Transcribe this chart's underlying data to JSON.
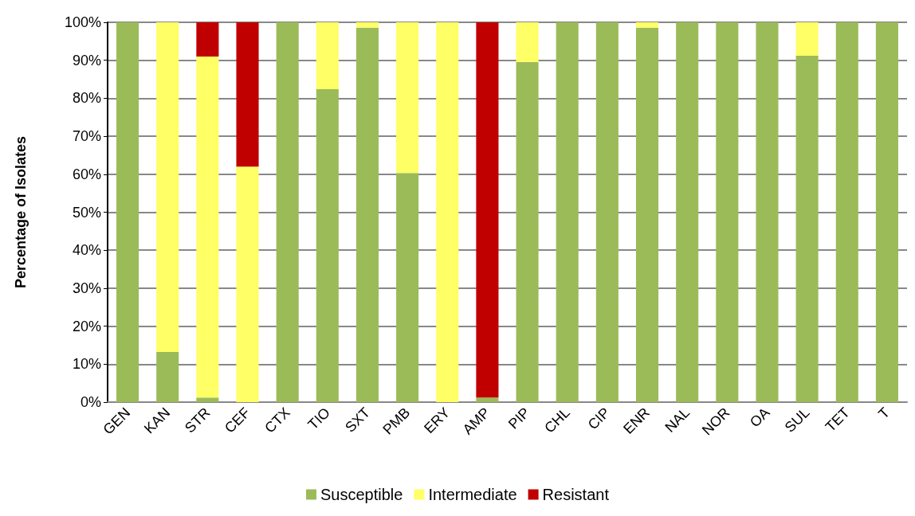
{
  "chart_data": {
    "type": "bar",
    "stacked": true,
    "ylabel": "Percentage of Isolates",
    "categories": [
      "GEN",
      "KAN",
      "STR",
      "CEF",
      "CTX",
      "TIO",
      "SXT",
      "PMB",
      "ERY",
      "AMP",
      "PIP",
      "CHL",
      "CIP",
      "ENR",
      "NAL",
      "NOR",
      "OA",
      "SUL",
      "TET",
      "T"
    ],
    "series": [
      {
        "name": "Susceptible",
        "color": "#9bbb59",
        "values": [
          100,
          13.2,
          1.2,
          0,
          100,
          82.4,
          98.6,
          60.3,
          0,
          1.2,
          89.5,
          100,
          100,
          98.6,
          100,
          100,
          100,
          91.2,
          100,
          100
        ]
      },
      {
        "name": "Intermediate",
        "color": "#ffff66",
        "values": [
          0,
          86.8,
          89.8,
          62,
          0,
          17.6,
          1.4,
          39.7,
          100,
          0,
          10.5,
          0,
          0,
          1.4,
          0,
          0,
          0,
          8.8,
          0,
          0
        ]
      },
      {
        "name": "Resistant",
        "color": "#c00000",
        "values": [
          0,
          0,
          9,
          38,
          0,
          0,
          0,
          0,
          0,
          98.8,
          0,
          0,
          0,
          0,
          0,
          0,
          0,
          0,
          0,
          0
        ]
      }
    ],
    "ylim": [
      0,
      100
    ],
    "yticks": [
      {
        "value": 0,
        "label": "0%"
      },
      {
        "value": 10,
        "label": "10%"
      },
      {
        "value": 20,
        "label": "20%"
      },
      {
        "value": 30,
        "label": "30%"
      },
      {
        "value": 40,
        "label": "40%"
      },
      {
        "value": 50,
        "label": "50%"
      },
      {
        "value": 60,
        "label": "60%"
      },
      {
        "value": 70,
        "label": "70%"
      },
      {
        "value": 80,
        "label": "80%"
      },
      {
        "value": 90,
        "label": "90%"
      },
      {
        "value": 100,
        "label": "100%"
      }
    ],
    "grid": "y",
    "legend": "bottom"
  }
}
